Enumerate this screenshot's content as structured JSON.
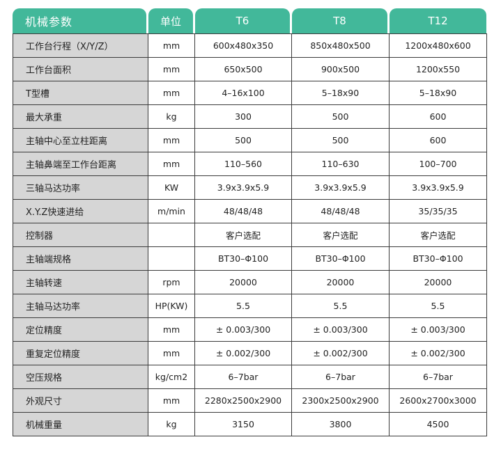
{
  "colors": {
    "header": "#42b89a",
    "label_bg": "#d6d6d6",
    "border": "#3a3a3a"
  },
  "headers": [
    "机械参数",
    "单位",
    "T6",
    "T8",
    "T12"
  ],
  "rows": [
    [
      "工作台行程（X/Y/Z）",
      "mm",
      "600x480x350",
      "850x480x500",
      "1200x480x600"
    ],
    [
      "工作台面积",
      "mm",
      "650x500",
      "900x500",
      "1200x550"
    ],
    [
      "T型槽",
      "mm",
      "4–16x100",
      "5–18x90",
      "5–18x90"
    ],
    [
      "最大承重",
      "kg",
      "300",
      "500",
      "600"
    ],
    [
      "主轴中心至立柱距离",
      "mm",
      "500",
      "500",
      "600"
    ],
    [
      "主轴鼻端至工作台距离",
      "mm",
      "110–560",
      "110–630",
      "100–700"
    ],
    [
      "三轴马达功率",
      "KW",
      "3.9x3.9x5.9",
      "3.9x3.9x5.9",
      "3.9x3.9x5.9"
    ],
    [
      "X.Y.Z快速进给",
      "m/min",
      "48/48/48",
      "48/48/48",
      "35/35/35"
    ],
    [
      "控制器",
      "",
      "客户选配",
      "客户选配",
      "客户选配"
    ],
    [
      "主轴端规格",
      "",
      "BT30–Φ100",
      "BT30–Φ100",
      "BT30–Φ100"
    ],
    [
      "主轴转速",
      "rpm",
      "20000",
      "20000",
      "20000"
    ],
    [
      "主轴马达功率",
      "HP(KW)",
      "5.5",
      "5.5",
      "5.5"
    ],
    [
      "定位精度",
      "mm",
      "± 0.003/300",
      "± 0.003/300",
      "± 0.003/300"
    ],
    [
      "重复定位精度",
      "mm",
      "± 0.002/300",
      "± 0.002/300",
      "± 0.002/300"
    ],
    [
      "空压规格",
      "kg/cm2",
      "6–7bar",
      "6–7bar",
      "6–7bar"
    ],
    [
      "外观尺寸",
      "mm",
      "2280x2500x2900",
      "2300x2500x2900",
      "2600x2700x3000"
    ],
    [
      "机械重量",
      "kg",
      "3150",
      "3800",
      "4500"
    ]
  ]
}
